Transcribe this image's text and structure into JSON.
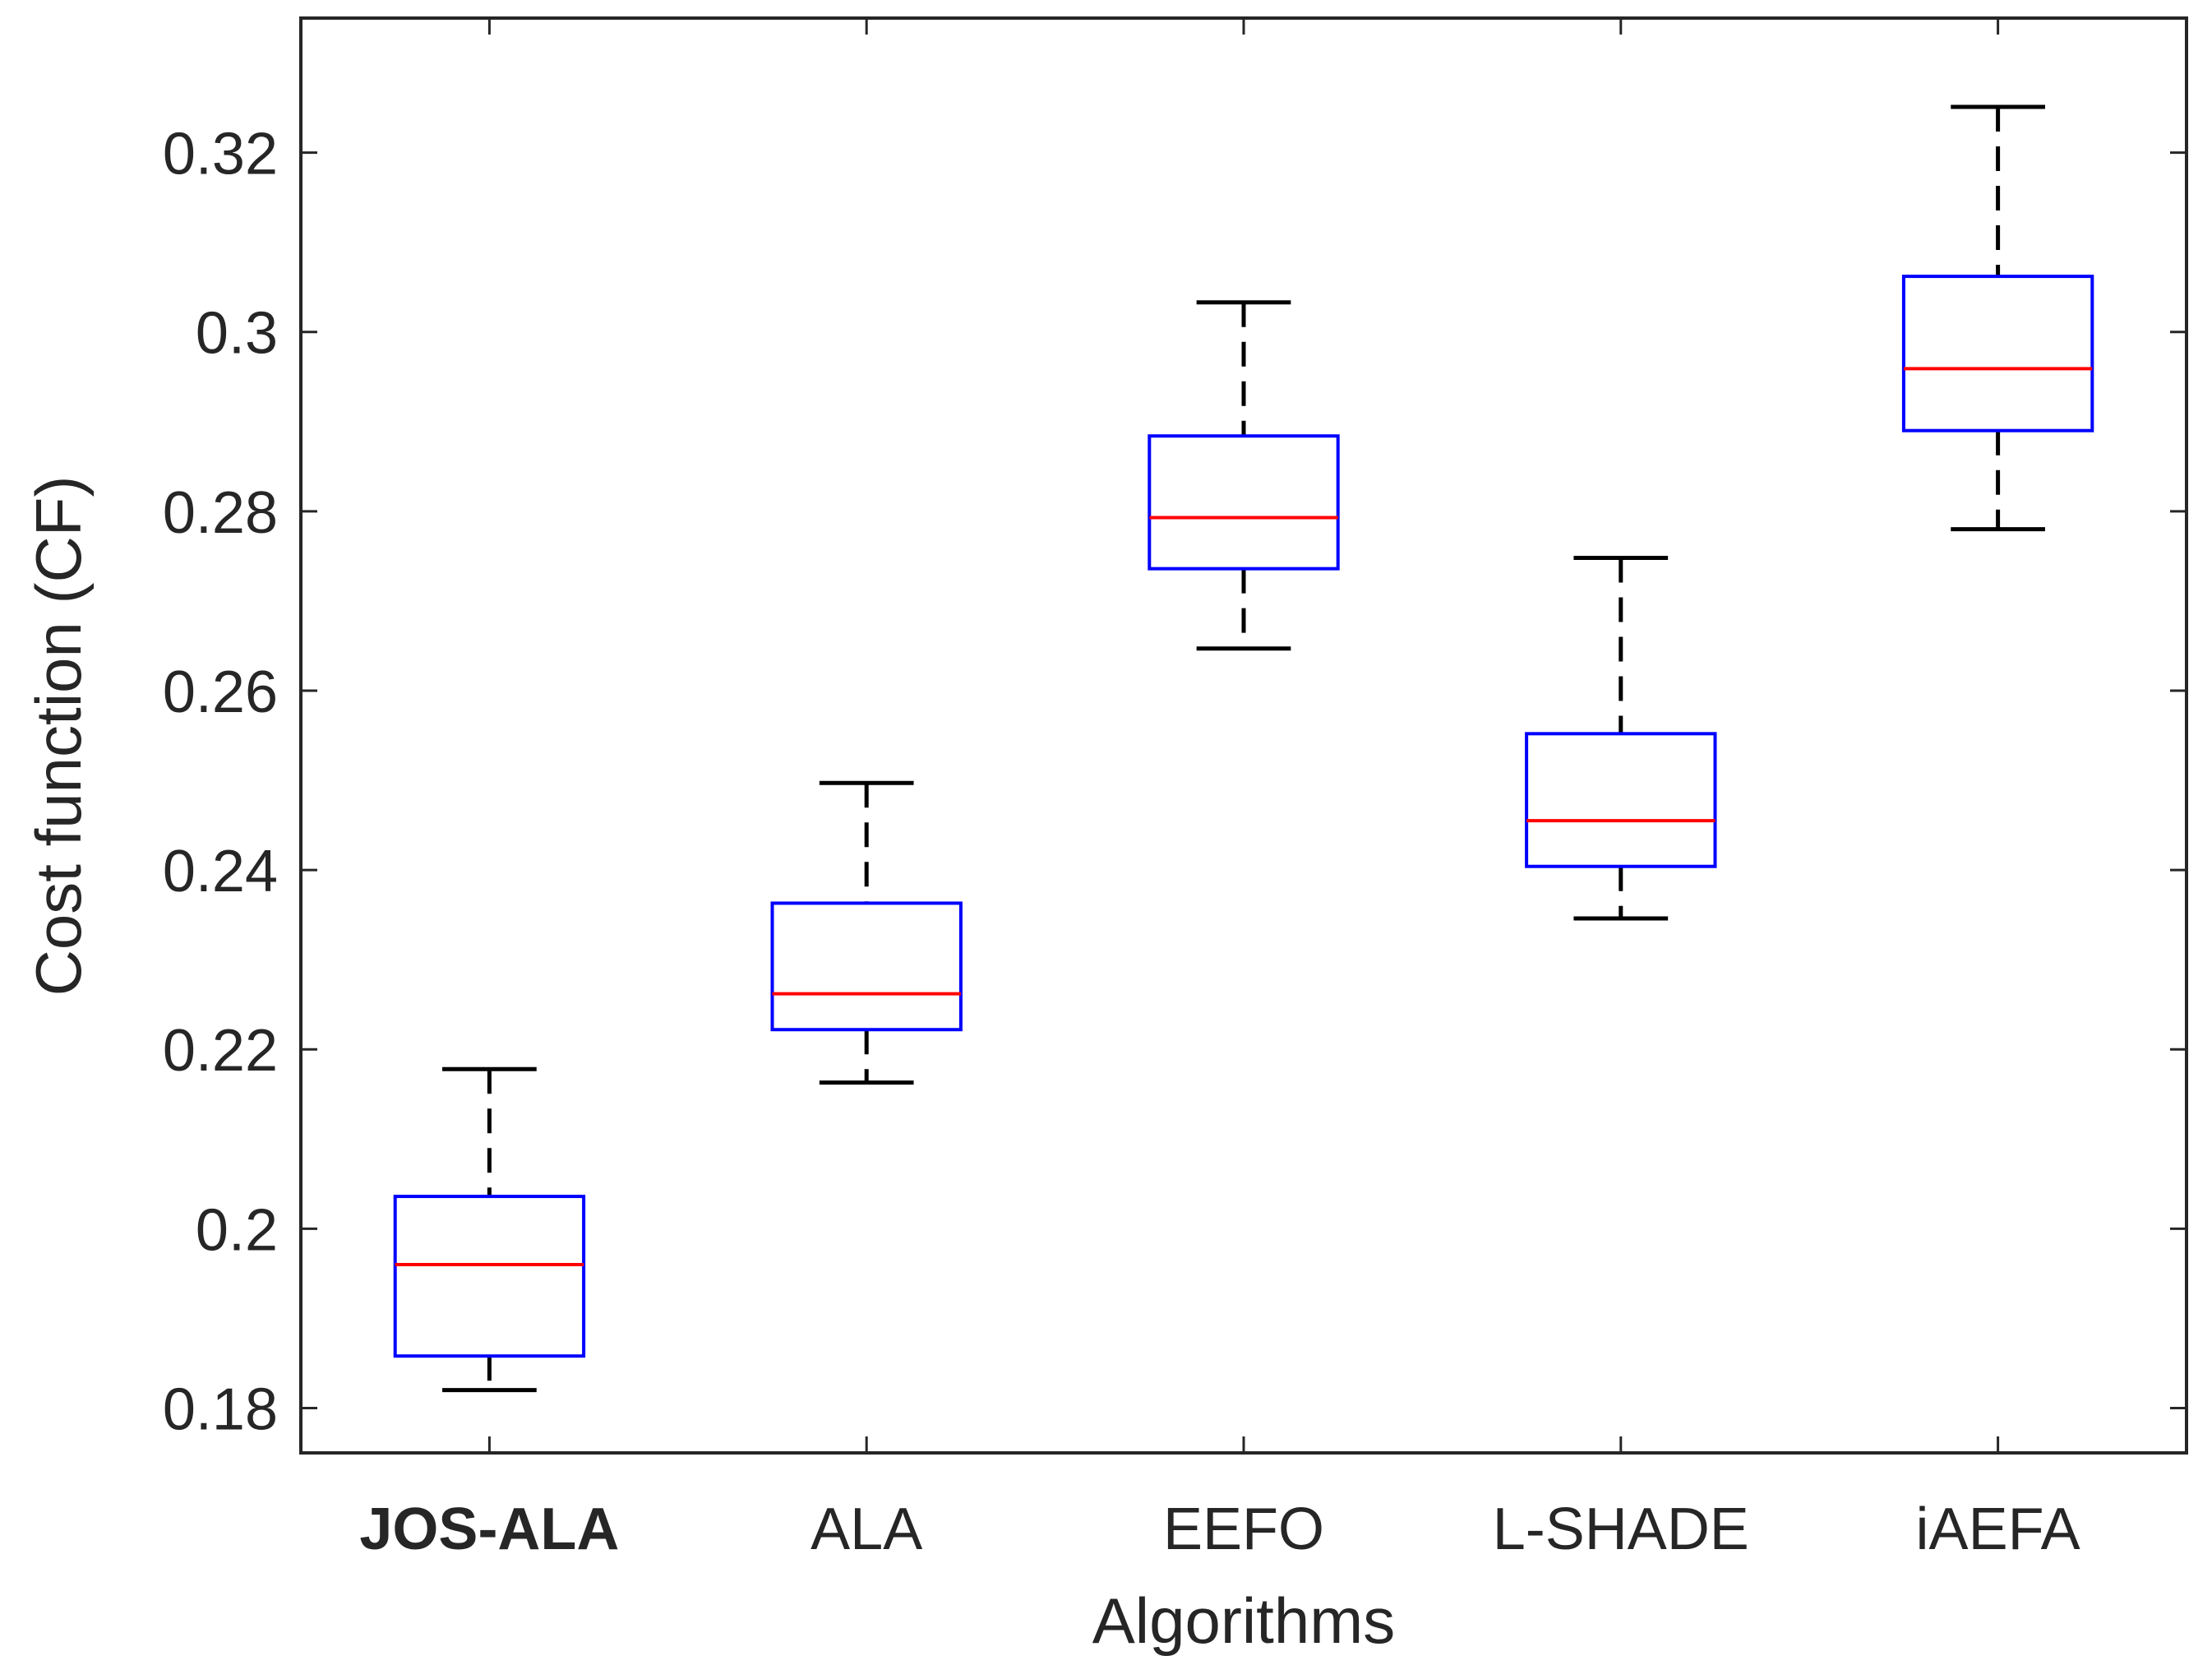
{
  "chart_data": {
    "type": "boxplot",
    "title": "",
    "xlabel": "Algorithms",
    "ylabel": "Cost function (CF)",
    "ylim": [
      0.175,
      0.335
    ],
    "yticks": [
      0.18,
      0.2,
      0.22,
      0.24,
      0.26,
      0.28,
      0.3,
      0.32
    ],
    "ytick_labels": [
      "0.18",
      "0.2",
      "0.22",
      "0.24",
      "0.26",
      "0.28",
      "0.3",
      "0.32"
    ],
    "colors": {
      "box": "#0000ff",
      "median": "#ff0000",
      "whisker": "#000000",
      "axis": "#262626"
    },
    "categories": [
      "JOS-ALA",
      "ALA",
      "EEFO",
      "L-SHADE",
      "iAEFA"
    ],
    "bold_categories": [
      "JOS-ALA"
    ],
    "boxes": [
      {
        "name": "JOS-ALA",
        "min": 0.182,
        "q1": 0.1858,
        "median": 0.196,
        "q3": 0.2036,
        "max": 0.2178
      },
      {
        "name": "ALA",
        "min": 0.2163,
        "q1": 0.2222,
        "median": 0.2262,
        "q3": 0.2363,
        "max": 0.2497
      },
      {
        "name": "EEFO",
        "min": 0.2647,
        "q1": 0.2736,
        "median": 0.2793,
        "q3": 0.2884,
        "max": 0.3033
      },
      {
        "name": "L-SHADE",
        "min": 0.2346,
        "q1": 0.2404,
        "median": 0.2455,
        "q3": 0.2552,
        "max": 0.2748
      },
      {
        "name": "iAEFA",
        "min": 0.278,
        "q1": 0.289,
        "median": 0.2959,
        "q3": 0.3062,
        "max": 0.3251
      }
    ]
  }
}
